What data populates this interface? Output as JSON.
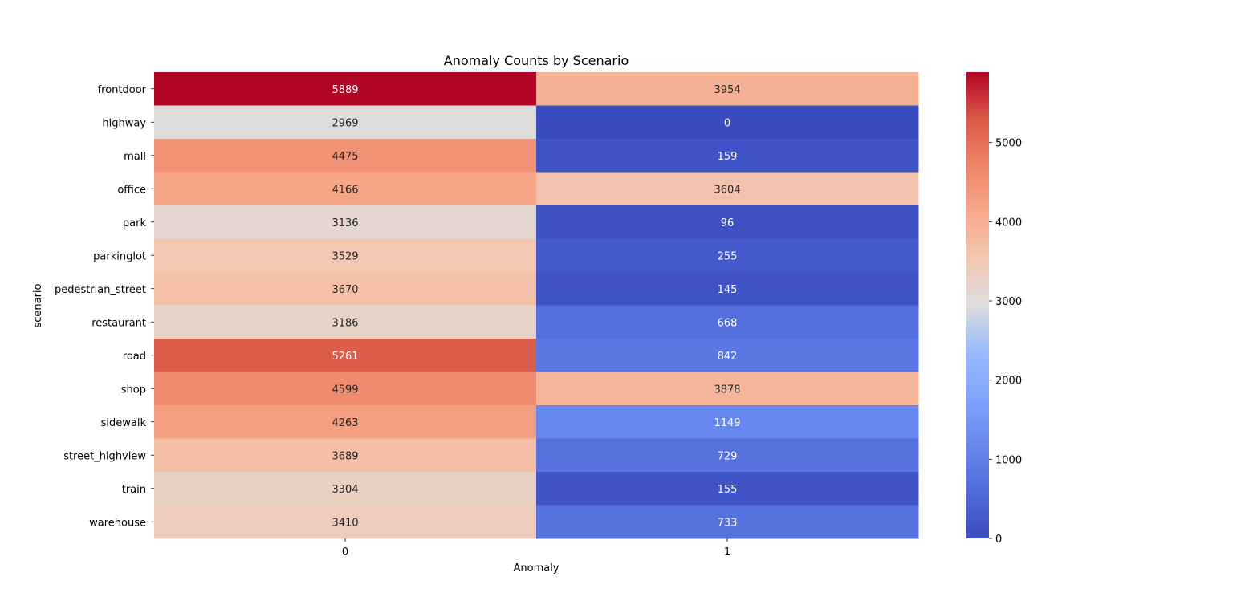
{
  "chart_data": {
    "type": "heatmap",
    "title": "Anomaly Counts by Scenario",
    "xlabel": "Anomaly",
    "ylabel": "scenario",
    "x_categories": [
      "0",
      "1"
    ],
    "y_categories": [
      "frontdoor",
      "highway",
      "mall",
      "office",
      "park",
      "parkinglot",
      "pedestrian_street",
      "restaurant",
      "road",
      "shop",
      "sidewalk",
      "street_highview",
      "train",
      "warehouse"
    ],
    "values": [
      [
        5889,
        3954
      ],
      [
        2969,
        0
      ],
      [
        4475,
        159
      ],
      [
        4166,
        3604
      ],
      [
        3136,
        96
      ],
      [
        3529,
        255
      ],
      [
        3670,
        145
      ],
      [
        3186,
        668
      ],
      [
        5261,
        842
      ],
      [
        4599,
        3878
      ],
      [
        4263,
        1149
      ],
      [
        3689,
        729
      ],
      [
        3304,
        155
      ],
      [
        3410,
        733
      ]
    ],
    "colormap": "coolwarm",
    "colorbar": {
      "range": [
        0,
        5889
      ],
      "ticks": [
        0,
        1000,
        2000,
        3000,
        4000,
        5000
      ],
      "tick_labels": [
        "0",
        "1000",
        "2000",
        "3000",
        "4000",
        "5000"
      ]
    },
    "annotations": true,
    "grid": false
  }
}
